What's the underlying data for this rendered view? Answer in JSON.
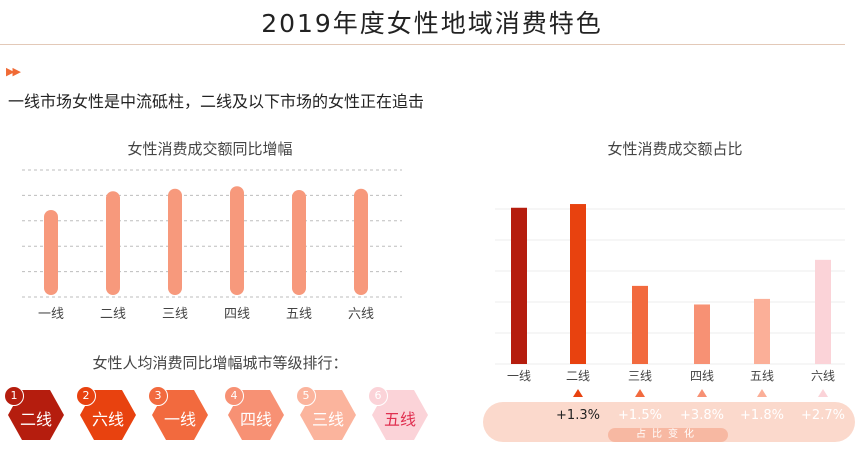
{
  "header": {
    "title": "2019年度女性地域消费特色",
    "arrows": "▶▶",
    "subtitle": "一线市场女性是中流砥柱，二线及以下市场的女性正在追击"
  },
  "colors": {
    "left_bar": "#f7997c",
    "accent": "#f06a35",
    "right_bars": [
      "#b51d0e",
      "#e8420f",
      "#f26a3e",
      "#f79174",
      "#fbaf98",
      "#fbd3d8"
    ],
    "rank_hex": [
      "#b51d0e",
      "#e8420f",
      "#f26a3e",
      "#f79174",
      "#fbb49d",
      "#fbd3d8"
    ],
    "rank_text": [
      "#ffffff",
      "#ffffff",
      "#ffffff",
      "#ffffff",
      "#ffffff",
      "#e03050"
    ],
    "change_text": [
      "#222222",
      "#ffffff",
      "#ffffff",
      "#ffffff",
      "#ffffff"
    ]
  },
  "chart_data": [
    {
      "type": "bar",
      "title": "女性消费成交额同比增幅",
      "categories": [
        "一线",
        "二线",
        "三线",
        "四线",
        "五线",
        "六线"
      ],
      "values": [
        0.68,
        0.83,
        0.85,
        0.87,
        0.84,
        0.85
      ],
      "ylim": [
        0,
        1
      ],
      "grid": true,
      "note_unit": ""
    },
    {
      "type": "bar",
      "title": "女性消费成交额占比",
      "categories": [
        "一线",
        "二线",
        "三线",
        "四线",
        "五线",
        "六线"
      ],
      "values": [
        0.84,
        0.86,
        0.42,
        0.32,
        0.35,
        0.56
      ],
      "ylim": [
        0,
        1
      ],
      "grid": true
    }
  ],
  "ranking": {
    "title": "女性人均消费同比增幅城市等级排行：",
    "items": [
      {
        "rank": "1",
        "label": "二线"
      },
      {
        "rank": "2",
        "label": "六线"
      },
      {
        "rank": "3",
        "label": "一线"
      },
      {
        "rank": "4",
        "label": "四线"
      },
      {
        "rank": "5",
        "label": "三线"
      },
      {
        "rank": "6",
        "label": "五线"
      }
    ]
  },
  "share_change": {
    "label": "占比变化",
    "values": [
      "+1.3%",
      "+1.5%",
      "+3.8%",
      "+1.8%",
      "+2.7%"
    ]
  }
}
